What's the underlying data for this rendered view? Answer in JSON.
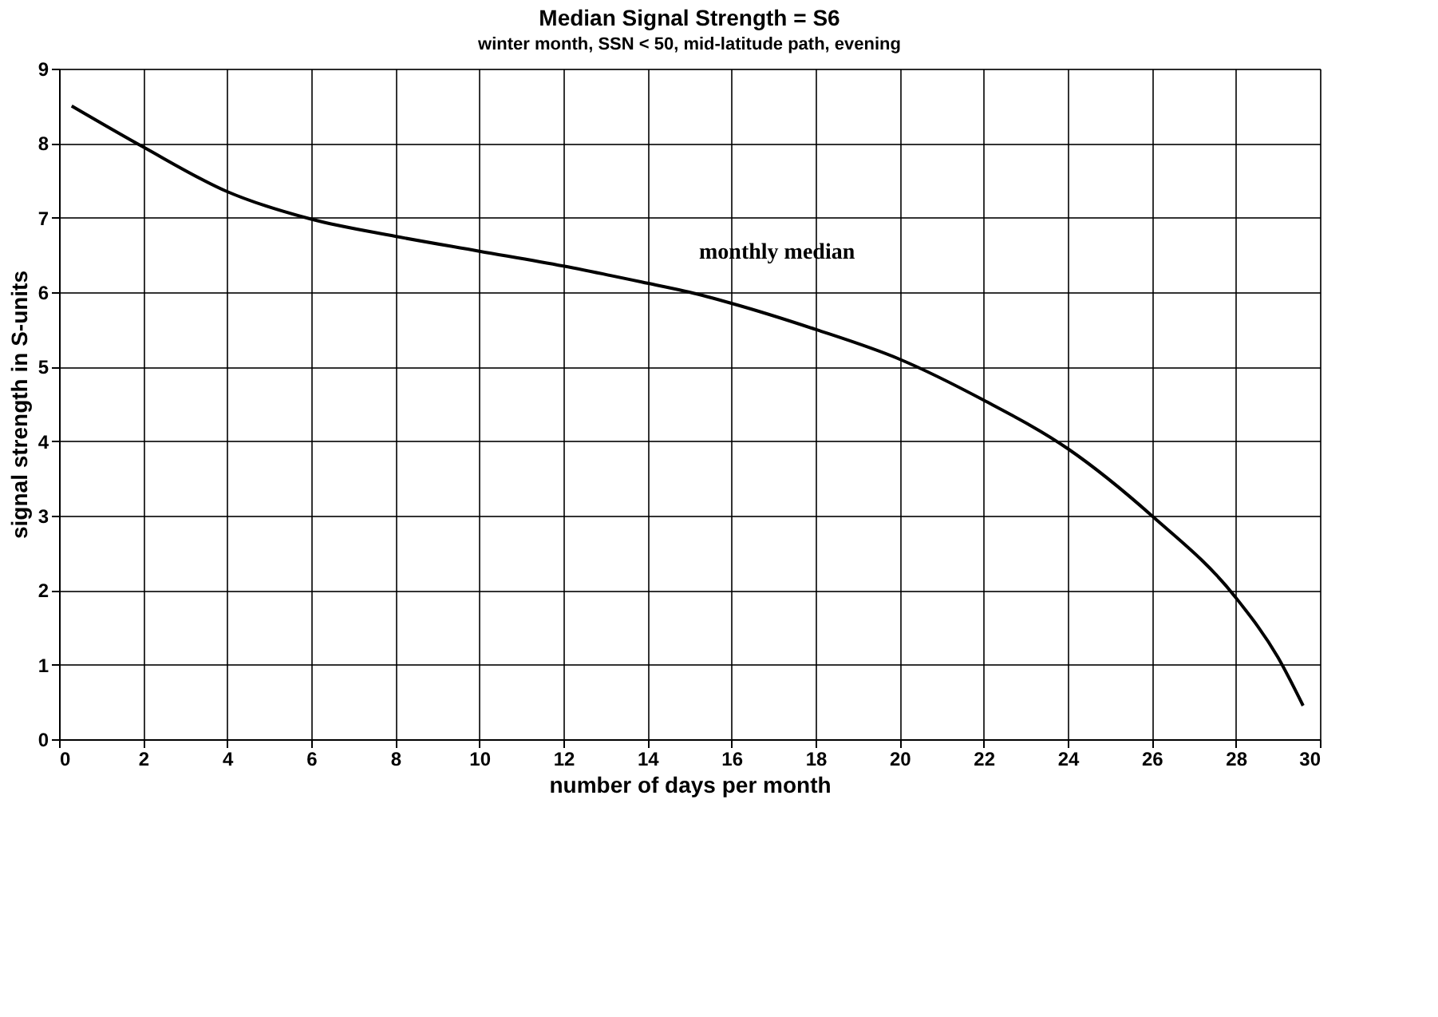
{
  "chart_data": {
    "type": "line",
    "title": "Median Signal Strength = S6",
    "subtitle": "winter month, SSN < 50, mid-latitude path, evening",
    "xlabel": "number of days per month",
    "ylabel": "signal strength in S-units",
    "x": [
      0.3,
      2,
      4,
      6,
      8,
      10,
      12,
      14,
      15,
      16,
      18,
      20,
      22,
      24,
      26,
      28,
      29,
      29.6
    ],
    "series": [
      {
        "color": "#000000",
        "values": [
          8.5,
          7.95,
          7.35,
          6.98,
          6.75,
          6.55,
          6.35,
          6.12,
          6.0,
          5.85,
          5.5,
          5.1,
          4.55,
          3.9,
          3.0,
          1.9,
          1.1,
          0.45
        ]
      }
    ],
    "xlim": [
      0,
      30
    ],
    "xticks": [
      0,
      2,
      4,
      6,
      8,
      10,
      12,
      14,
      16,
      18,
      20,
      22,
      24,
      26,
      28,
      30
    ],
    "ylim": [
      0,
      9
    ],
    "yticks": [
      0,
      1,
      2,
      3,
      4,
      5,
      6,
      7,
      8,
      9
    ],
    "grid": true,
    "marker": "none",
    "line_style": "solid",
    "annotations": [
      {
        "text": "monthly median",
        "x": 15,
        "y": 6
      }
    ]
  }
}
